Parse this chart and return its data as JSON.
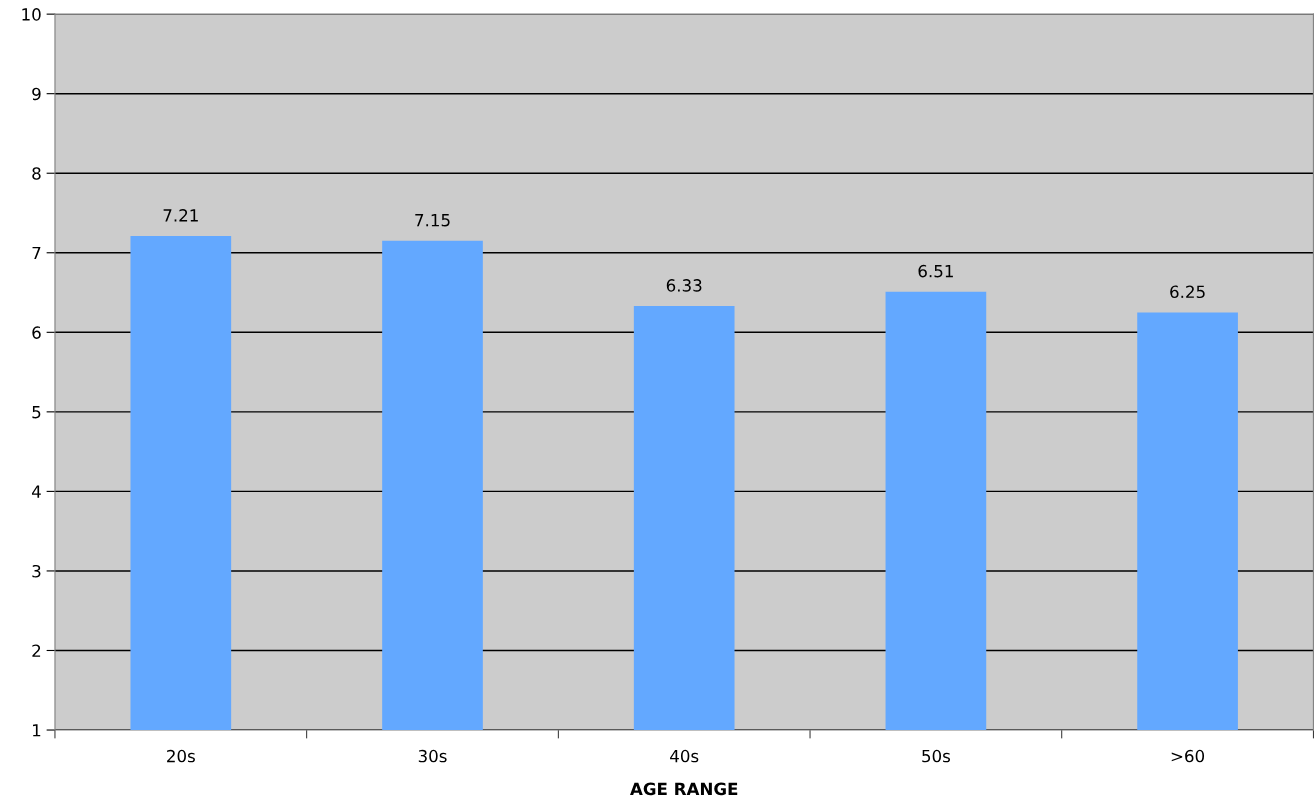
{
  "chart_data": {
    "type": "bar",
    "xlabel": "AGE RANGE",
    "categories": [
      "20s",
      "30s",
      "40s",
      "50s",
      ">60"
    ],
    "values": [
      7.21,
      7.15,
      6.33,
      6.51,
      6.25
    ],
    "color": "#63a8ff",
    "ylim": [
      1,
      10
    ],
    "yticks": [
      1,
      2,
      3,
      4,
      5,
      6,
      7,
      8,
      9,
      10
    ],
    "grid": "y",
    "data_labels": true
  }
}
